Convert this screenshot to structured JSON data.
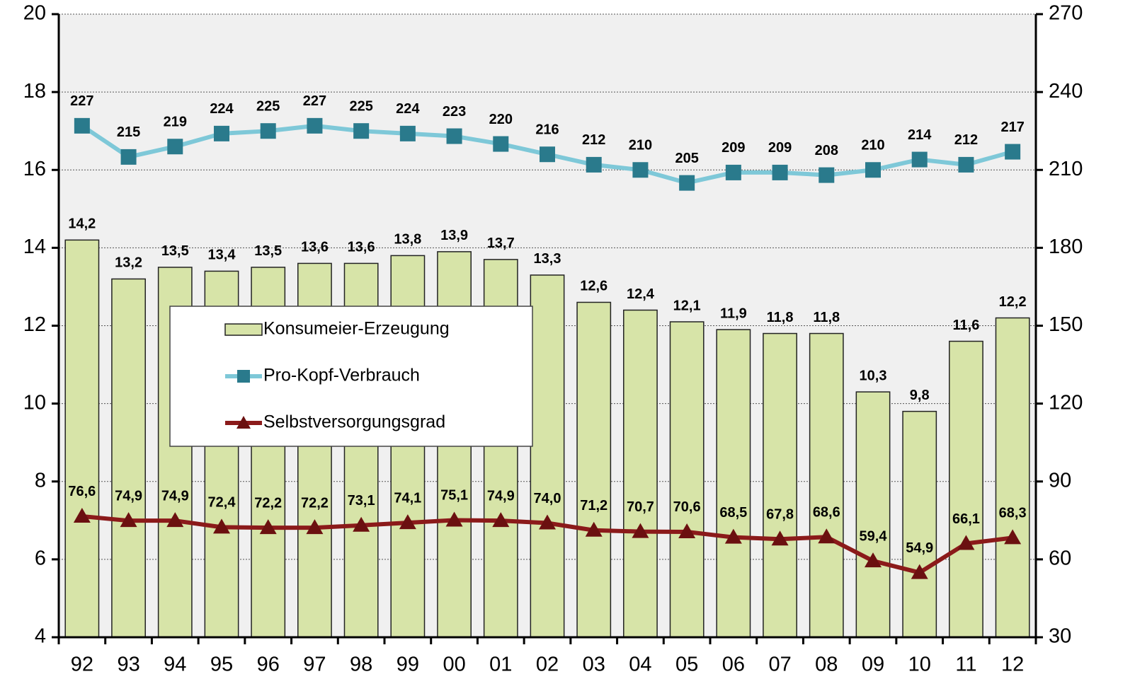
{
  "chart_data": {
    "type": "combo",
    "categories": [
      "92",
      "93",
      "94",
      "95",
      "96",
      "97",
      "98",
      "99",
      "00",
      "01",
      "02",
      "03",
      "04",
      "05",
      "06",
      "07",
      "08",
      "09",
      "10",
      "11",
      "12"
    ],
    "series": [
      {
        "name": "Konsumeier-Erzeugung",
        "type": "bar",
        "axis": "y",
        "color": "#d7e4a8",
        "values": [
          14.2,
          13.2,
          13.5,
          13.4,
          13.5,
          13.6,
          13.6,
          13.8,
          13.9,
          13.7,
          13.3,
          12.6,
          12.4,
          12.1,
          11.9,
          11.8,
          11.8,
          10.3,
          9.8,
          11.6,
          12.2
        ],
        "value_labels": [
          "14,2",
          "13,2",
          "13,5",
          "13,4",
          "13,5",
          "13,6",
          "13,6",
          "13,8",
          "13,9",
          "13,7",
          "13,3",
          "12,6",
          "12,4",
          "12,1",
          "11,9",
          "11,8",
          "11,8",
          "10,3",
          "9,8",
          "11,6",
          "12,2"
        ]
      },
      {
        "name": "Pro-Kopf-Verbrauch",
        "type": "line",
        "axis": "y2",
        "color": "#7ec8d8",
        "marker_color": "#2a7a8c",
        "marker": "square",
        "values": [
          227,
          215,
          219,
          224,
          225,
          227,
          225,
          224,
          223,
          220,
          216,
          212,
          210,
          205,
          209,
          209,
          208,
          210,
          214,
          212,
          217
        ]
      },
      {
        "name": "Selbstversorgungsgrad",
        "type": "line",
        "axis": "y2",
        "color": "#8b1a1a",
        "marker_color": "#6b1010",
        "marker": "triangle",
        "values": [
          76.6,
          74.9,
          74.9,
          72.4,
          72.2,
          72.2,
          73.1,
          74.1,
          75.1,
          74.9,
          74.0,
          71.2,
          70.7,
          70.6,
          68.5,
          67.8,
          68.6,
          59.4,
          54.9,
          66.1,
          68.3
        ],
        "value_labels": [
          "76,6",
          "74,9",
          "74,9",
          "72,4",
          "72,2",
          "72,2",
          "73,1",
          "74,1",
          "75,1",
          "74,9",
          "74,0",
          "71,2",
          "70,7",
          "70,6",
          "68,5",
          "67,8",
          "68,6",
          "59,4",
          "54,9",
          "66,1",
          "68,3"
        ]
      }
    ],
    "ylim": [
      4,
      20
    ],
    "yticks": [
      4,
      6,
      8,
      10,
      12,
      14,
      16,
      18,
      20
    ],
    "y2lim": [
      30,
      270
    ],
    "y2ticks": [
      30,
      60,
      90,
      120,
      150,
      180,
      210,
      240,
      270
    ],
    "grid": true
  }
}
